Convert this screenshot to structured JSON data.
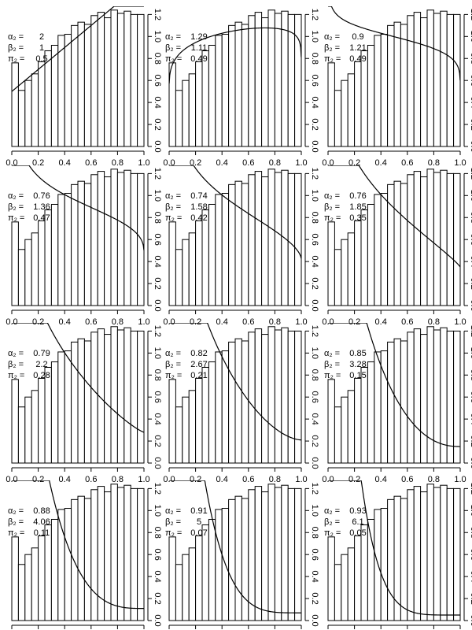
{
  "chart_data": {
    "type": "bar",
    "layout": {
      "rows": 4,
      "cols": 3
    },
    "x_ticks": [
      "0.0",
      "0.2",
      "0.4",
      "0.6",
      "0.8",
      "1.0"
    ],
    "y_ticks": [
      "0.0",
      "0.2",
      "0.4",
      "0.6",
      "0.8",
      "1.0",
      "1.2"
    ],
    "xlim": [
      0,
      1
    ],
    "ylim": [
      0,
      1.26
    ],
    "histogram": {
      "bin_edges": [
        0.0,
        0.05,
        0.1,
        0.15,
        0.2,
        0.25,
        0.3,
        0.35,
        0.4,
        0.45,
        0.5,
        0.55,
        0.6,
        0.65,
        0.7,
        0.75,
        0.8,
        0.85,
        0.9,
        0.95,
        1.0
      ],
      "heights": [
        0.76,
        0.51,
        0.6,
        0.66,
        0.77,
        0.87,
        0.92,
        1.01,
        1.02,
        1.1,
        1.13,
        1.11,
        1.19,
        1.22,
        1.17,
        1.24,
        1.21,
        1.23,
        1.2,
        1.2
      ]
    },
    "annotation_labels": {
      "alpha": "α₂ =",
      "beta": "β₂ =",
      "pi": "π₂ ="
    },
    "panels": [
      {
        "alpha": "2",
        "beta": "1",
        "pi": "0.5"
      },
      {
        "alpha": "1.29",
        "beta": "1.11",
        "pi": "0.49"
      },
      {
        "alpha": "0.9",
        "beta": "1.21",
        "pi": "0.49"
      },
      {
        "alpha": "0.76",
        "beta": "1.36",
        "pi": "0.47"
      },
      {
        "alpha": "0.74",
        "beta": "1.58",
        "pi": "0.42"
      },
      {
        "alpha": "0.76",
        "beta": "1.85",
        "pi": "0.35"
      },
      {
        "alpha": "0.79",
        "beta": "2.2",
        "pi": "0.28"
      },
      {
        "alpha": "0.82",
        "beta": "2.67",
        "pi": "0.21"
      },
      {
        "alpha": "0.85",
        "beta": "3.28",
        "pi": "0.15"
      },
      {
        "alpha": "0.88",
        "beta": "4.06",
        "pi": "0.11"
      },
      {
        "alpha": "0.91",
        "beta": "5",
        "pi": "0.07"
      },
      {
        "alpha": "0.93",
        "beta": "6.1",
        "pi": "0.05"
      }
    ]
  }
}
